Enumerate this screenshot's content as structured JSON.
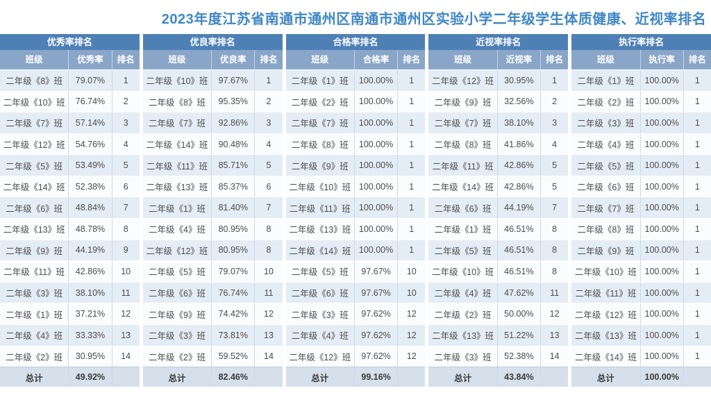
{
  "title": "2023年度江苏省南通市通州区南通市通州区实验小学二年级学生体质健康、近视率排名",
  "colors": {
    "title_text": "#3e86c5",
    "header_dark": "#4e80b6",
    "header_mid": "#89a6c9",
    "row_odd": "#e4ecf5",
    "row_even": "#fbfcfe",
    "total_row": "#d5e0eb"
  },
  "tables": [
    {
      "title": "优秀率排名",
      "columns": [
        "班级",
        "优秀率",
        "排名"
      ],
      "rows": [
        [
          "二年级《8》班",
          "79.07%",
          "1"
        ],
        [
          "二年级《10》班",
          "76.74%",
          "2"
        ],
        [
          "二年级《7》班",
          "57.14%",
          "3"
        ],
        [
          "二年级《12》班",
          "54.76%",
          "4"
        ],
        [
          "二年级《5》班",
          "53.49%",
          "5"
        ],
        [
          "二年级《14》班",
          "52.38%",
          "6"
        ],
        [
          "二年级《6》班",
          "48.84%",
          "7"
        ],
        [
          "二年级《13》班",
          "48.78%",
          "8"
        ],
        [
          "二年级《9》班",
          "44.19%",
          "9"
        ],
        [
          "二年级《11》班",
          "42.86%",
          "10"
        ],
        [
          "二年级《3》班",
          "38.10%",
          "11"
        ],
        [
          "二年级《1》班",
          "37.21%",
          "12"
        ],
        [
          "二年级《4》班",
          "33.33%",
          "13"
        ],
        [
          "二年级《2》班",
          "30.95%",
          "14"
        ]
      ],
      "total_label": "总计",
      "total_value": "49.92%"
    },
    {
      "title": "优良率排名",
      "columns": [
        "班级",
        "优良率",
        "排名"
      ],
      "rows": [
        [
          "二年级《10》班",
          "97.67%",
          "1"
        ],
        [
          "二年级《8》班",
          "95.35%",
          "2"
        ],
        [
          "二年级《7》班",
          "92.86%",
          "3"
        ],
        [
          "二年级《14》班",
          "90.48%",
          "4"
        ],
        [
          "二年级《11》班",
          "85.71%",
          "5"
        ],
        [
          "二年级《13》班",
          "85.37%",
          "6"
        ],
        [
          "二年级《1》班",
          "81.40%",
          "7"
        ],
        [
          "二年级《4》班",
          "80.95%",
          "8"
        ],
        [
          "二年级《12》班",
          "80.95%",
          "8"
        ],
        [
          "二年级《5》班",
          "79.07%",
          "10"
        ],
        [
          "二年级《6》班",
          "76.74%",
          "11"
        ],
        [
          "二年级《9》班",
          "74.42%",
          "12"
        ],
        [
          "二年级《3》班",
          "73.81%",
          "13"
        ],
        [
          "二年级《2》班",
          "59.52%",
          "14"
        ]
      ],
      "total_label": "总计",
      "total_value": "82.46%"
    },
    {
      "title": "合格率排名",
      "columns": [
        "班级",
        "合格率",
        "排名"
      ],
      "rows": [
        [
          "二年级《1》班",
          "100.00%",
          "1"
        ],
        [
          "二年级《2》班",
          "100.00%",
          "1"
        ],
        [
          "二年级《7》班",
          "100.00%",
          "1"
        ],
        [
          "二年级《8》班",
          "100.00%",
          "1"
        ],
        [
          "二年级《9》班",
          "100.00%",
          "1"
        ],
        [
          "二年级《10》班",
          "100.00%",
          "1"
        ],
        [
          "二年级《11》班",
          "100.00%",
          "1"
        ],
        [
          "二年级《13》班",
          "100.00%",
          "1"
        ],
        [
          "二年级《14》班",
          "100.00%",
          "1"
        ],
        [
          "二年级《5》班",
          "97.67%",
          "10"
        ],
        [
          "二年级《6》班",
          "97.67%",
          "10"
        ],
        [
          "二年级《3》班",
          "97.62%",
          "12"
        ],
        [
          "二年级《4》班",
          "97.62%",
          "12"
        ],
        [
          "二年级《12》班",
          "97.62%",
          "12"
        ]
      ],
      "total_label": "总计",
      "total_value": "99.16%"
    },
    {
      "title": "近视率排名",
      "columns": [
        "班级",
        "近视率",
        "排名"
      ],
      "rows": [
        [
          "二年级《12》班",
          "30.95%",
          "1"
        ],
        [
          "二年级《9》班",
          "32.56%",
          "2"
        ],
        [
          "二年级《7》班",
          "38.10%",
          "3"
        ],
        [
          "二年级《8》班",
          "41.86%",
          "4"
        ],
        [
          "二年级《11》班",
          "42.86%",
          "5"
        ],
        [
          "二年级《14》班",
          "42.86%",
          "5"
        ],
        [
          "二年级《6》班",
          "44.19%",
          "7"
        ],
        [
          "二年级《1》班",
          "46.51%",
          "8"
        ],
        [
          "二年级《5》班",
          "46.51%",
          "8"
        ],
        [
          "二年级《10》班",
          "46.51%",
          "8"
        ],
        [
          "二年级《4》班",
          "47.62%",
          "11"
        ],
        [
          "二年级《2》班",
          "50.00%",
          "12"
        ],
        [
          "二年级《13》班",
          "51.22%",
          "13"
        ],
        [
          "二年级《3》班",
          "52.38%",
          "14"
        ]
      ],
      "total_label": "总计",
      "total_value": "43.84%"
    },
    {
      "title": "执行率排名",
      "columns": [
        "班级",
        "执行率",
        "排名"
      ],
      "rows": [
        [
          "二年级《1》班",
          "100.00%",
          "1"
        ],
        [
          "二年级《2》班",
          "100.00%",
          "1"
        ],
        [
          "二年级《3》班",
          "100.00%",
          "1"
        ],
        [
          "二年级《4》班",
          "100.00%",
          "1"
        ],
        [
          "二年级《5》班",
          "100.00%",
          "1"
        ],
        [
          "二年级《6》班",
          "100.00%",
          "1"
        ],
        [
          "二年级《7》班",
          "100.00%",
          "1"
        ],
        [
          "二年级《8》班",
          "100.00%",
          "1"
        ],
        [
          "二年级《9》班",
          "100.00%",
          "1"
        ],
        [
          "二年级《10》班",
          "100.00%",
          "1"
        ],
        [
          "二年级《11》班",
          "100.00%",
          "1"
        ],
        [
          "二年级《12》班",
          "100.00%",
          "1"
        ],
        [
          "二年级《13》班",
          "100.00%",
          "1"
        ],
        [
          "二年级《14》班",
          "100.00%",
          "1"
        ]
      ],
      "total_label": "总计",
      "total_value": "100.00%"
    }
  ]
}
